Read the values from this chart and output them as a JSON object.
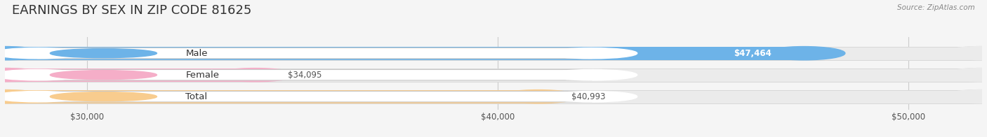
{
  "title": "EARNINGS BY SEX IN ZIP CODE 81625",
  "source": "Source: ZipAtlas.com",
  "categories": [
    "Male",
    "Female",
    "Total"
  ],
  "values": [
    47464,
    34095,
    40993
  ],
  "bar_colors": [
    "#6db3e8",
    "#f5aec8",
    "#f8cc8e"
  ],
  "x_min": 28000,
  "x_max": 51800,
  "x_ticks": [
    30000,
    40000,
    50000
  ],
  "x_tick_labels": [
    "$30,000",
    "$40,000",
    "$50,000"
  ],
  "background_color": "#f5f5f5",
  "bar_bg_color": "#ebebeb",
  "bar_bg_edge": "#d8d8d8",
  "title_fontsize": 13,
  "label_fontsize": 9.5,
  "value_fontsize": 8.5,
  "tick_fontsize": 8.5
}
